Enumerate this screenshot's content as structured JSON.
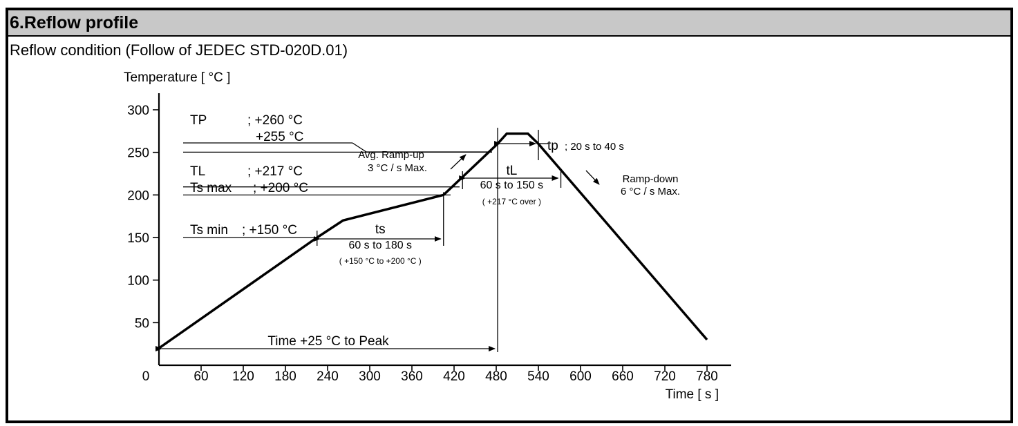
{
  "header": {
    "title": "6.Reflow profile",
    "subtitle": "Reflow condition (Follow of JEDEC STD-020D.01)"
  },
  "colors": {
    "header_bg": "#c8c8c8",
    "line": "#000000",
    "background": "#ffffff"
  },
  "chart_data": {
    "type": "line",
    "title": "",
    "xlabel": "Time [ s ]",
    "ylabel": "Temperature [ °C ]",
    "xlim": [
      0,
      800
    ],
    "ylim": [
      0,
      310
    ],
    "x_origin_label": "0",
    "x_ticks": [
      "60",
      "120",
      "180",
      "240",
      "300",
      "360",
      "420",
      "480",
      "540",
      "600",
      "660",
      "720",
      "780"
    ],
    "y_ticks": [
      "50",
      "100",
      "150",
      "200",
      "250",
      "300"
    ],
    "grid": false,
    "legend": "none",
    "series": [
      {
        "x": [
          0,
          225,
          262,
          405,
          482,
          495,
          525,
          540,
          780
        ],
        "y": [
          20,
          150,
          170,
          200,
          260,
          272,
          272,
          260,
          30
        ]
      }
    ],
    "reference_levels": [
      {
        "name": "TP",
        "value_label": "; +260 °C",
        "y": 270
      },
      {
        "value_label": "+255 °C",
        "y": 260
      },
      {
        "name": "TL",
        "value_label": "; +217 °C",
        "y": 220
      },
      {
        "name": "Ts max",
        "value_label": "; +200 °C",
        "y": 200
      },
      {
        "name": "Ts min",
        "value_label": "; +150 °C",
        "y": 150
      }
    ],
    "intervals": [
      {
        "name": "ts",
        "text": "60 s  to  180 s",
        "note": "( +150 °C  to  +200 °C )",
        "x_start": 225,
        "x_end": 405
      },
      {
        "name": "tL",
        "text": "60 s  to  150 s",
        "note": "( +217 °C  over )",
        "x_start": 432,
        "x_end": 572
      },
      {
        "name": "tp",
        "text": "; 20 s  to  40 s",
        "x_start": 482,
        "x_end": 540
      },
      {
        "text": "Time +25 °C to Peak",
        "x_start": 0,
        "x_end": 482
      }
    ],
    "annotations": [
      {
        "line1": "Avg. Ramp-up",
        "line2": "3 °C / s  Max."
      },
      {
        "line1": "Ramp-down",
        "line2": "6 °C / s  Max."
      }
    ]
  }
}
